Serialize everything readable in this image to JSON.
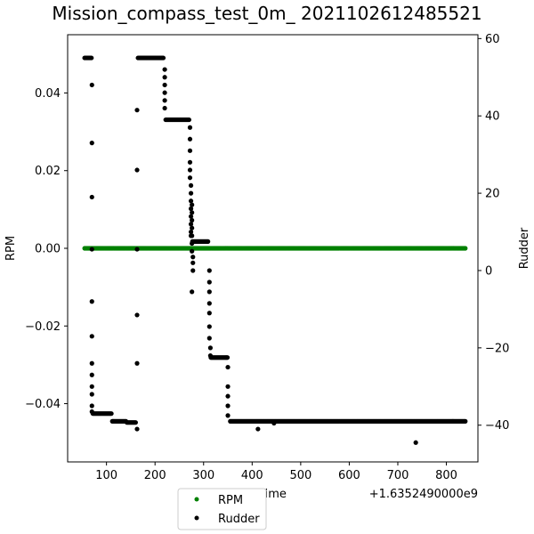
{
  "chart_data": {
    "type": "scatter",
    "title": "Mission_compass_test_0m_ 2021102612485521",
    "xlabel": "Time",
    "x_offset_label": "+1.6352490000e9",
    "ylabel_left": "RPM",
    "ylabel_right": "Rudder",
    "xlim": [
      20,
      865
    ],
    "ylim_left": [
      -0.055,
      0.055
    ],
    "ylim_right": [
      -49.5,
      61
    ],
    "x_ticks": [
      100,
      200,
      300,
      400,
      500,
      600,
      700,
      800
    ],
    "y_ticks_left": [
      -0.04,
      -0.02,
      0.0,
      0.02,
      0.04
    ],
    "y_ticks_right": [
      -40,
      -20,
      0,
      20,
      40,
      60
    ],
    "grid": false,
    "legend": {
      "position": "bottom-center",
      "entries": [
        {
          "name": "RPM",
          "color": "#008000"
        },
        {
          "name": "Rudder",
          "color": "#000000"
        }
      ]
    },
    "series": [
      {
        "name": "RPM",
        "axis": "left",
        "color": "#008000",
        "x_range": [
          55,
          840
        ],
        "value": 0.0
      },
      {
        "name": "Rudder",
        "axis": "right",
        "color": "#000000",
        "segments": [
          {
            "x": [
              55,
              70
            ],
            "y": 55
          },
          {
            "x": [
              72,
              110
            ],
            "y": -37
          },
          {
            "x": [
              112,
              140
            ],
            "y": -39
          },
          {
            "x": [
              142,
              160
            ],
            "y": -39.3
          },
          {
            "x": [
              165,
              218
            ],
            "y": 55
          },
          {
            "x": [
              222,
              270
            ],
            "y": 39
          },
          {
            "x": [
              277,
              310
            ],
            "y": 7.5
          },
          {
            "x": [
              315,
              350
            ],
            "y": -22.5
          },
          {
            "x": [
              355,
              840
            ],
            "y": -39
          }
        ],
        "points": [
          [
            70,
            48
          ],
          [
            70,
            33
          ],
          [
            70,
            19
          ],
          [
            70,
            5.5
          ],
          [
            70,
            -8
          ],
          [
            70,
            -17
          ],
          [
            70,
            -24
          ],
          [
            70,
            -27
          ],
          [
            70,
            -30
          ],
          [
            70,
            -32
          ],
          [
            70,
            -35
          ],
          [
            70,
            -36.5
          ],
          [
            163,
            -41
          ],
          [
            163,
            -24
          ],
          [
            163,
            -11.5
          ],
          [
            163,
            5.5
          ],
          [
            163,
            26
          ],
          [
            163,
            41.5
          ],
          [
            220,
            52
          ],
          [
            220,
            50
          ],
          [
            220,
            48
          ],
          [
            220,
            46
          ],
          [
            220,
            44
          ],
          [
            220,
            42
          ],
          [
            272,
            37
          ],
          [
            272,
            34
          ],
          [
            272,
            31
          ],
          [
            272,
            28
          ],
          [
            272,
            26
          ],
          [
            272,
            24
          ],
          [
            274,
            22
          ],
          [
            274,
            20
          ],
          [
            274,
            18
          ],
          [
            274,
            16
          ],
          [
            274,
            14
          ],
          [
            274,
            12
          ],
          [
            274,
            10
          ],
          [
            274,
            9
          ],
          [
            276,
            17
          ],
          [
            276,
            15
          ],
          [
            276,
            13
          ],
          [
            276,
            11
          ],
          [
            276,
            9
          ],
          [
            276,
            7
          ],
          [
            276,
            5
          ],
          [
            278,
            3.5
          ],
          [
            278,
            2
          ],
          [
            278,
            0
          ],
          [
            276,
            -5.5
          ],
          [
            312,
            0
          ],
          [
            312,
            -3
          ],
          [
            312,
            -5.5
          ],
          [
            312,
            -8.5
          ],
          [
            312,
            -11
          ],
          [
            312,
            -14.5
          ],
          [
            312,
            -17.5
          ],
          [
            314,
            -20
          ],
          [
            314,
            -22
          ],
          [
            350,
            -25
          ],
          [
            350,
            -30
          ],
          [
            350,
            -32.5
          ],
          [
            350,
            -35
          ],
          [
            350,
            -37.5
          ],
          [
            412,
            -41
          ],
          [
            445,
            -39.5
          ],
          [
            737,
            -44.5
          ]
        ]
      }
    ]
  }
}
